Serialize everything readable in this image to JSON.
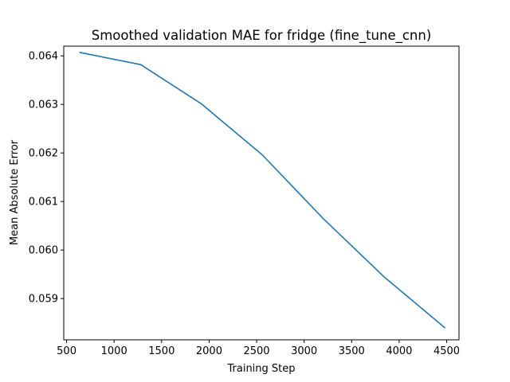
{
  "chart_data": {
    "type": "line",
    "title": "Smoothed validation MAE for fridge (fine_tune_cnn)",
    "xlabel": "Training Step",
    "ylabel": "Mean Absolute Error",
    "xlim": [
      470,
      4630
    ],
    "ylim": [
      0.05815,
      0.0642
    ],
    "x_ticks": [
      500,
      1000,
      1500,
      2000,
      2500,
      3000,
      3500,
      4000,
      4500
    ],
    "x_tick_labels": [
      "500",
      "1000",
      "1500",
      "2000",
      "2500",
      "3000",
      "3500",
      "4000",
      "4500"
    ],
    "y_ticks": [
      0.059,
      0.06,
      0.061,
      0.062,
      0.063,
      0.064
    ],
    "y_tick_labels": [
      "0.059",
      "0.060",
      "0.061",
      "0.062",
      "0.063",
      "0.064"
    ],
    "grid": false,
    "series": [
      {
        "color": "#1f77b4",
        "x": [
          640,
          1280,
          1920,
          2560,
          3200,
          3840,
          4480
        ],
        "y": [
          0.06407,
          0.06382,
          0.06301,
          0.06196,
          0.06065,
          0.05945,
          0.0584
        ]
      }
    ]
  }
}
